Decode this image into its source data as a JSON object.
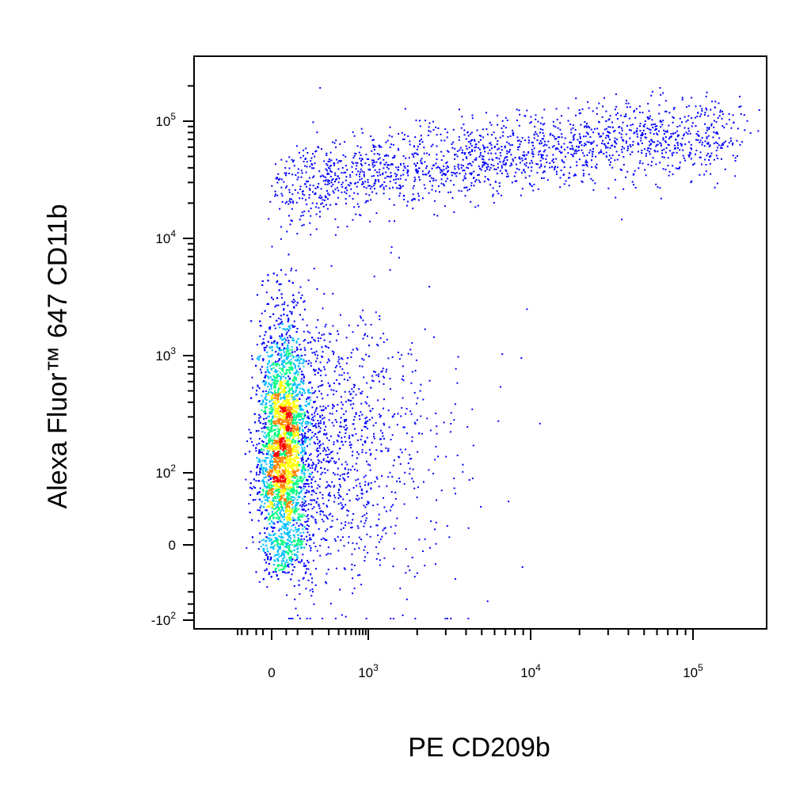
{
  "chart_data": {
    "type": "scatter",
    "style": "flow-cytometry pseudocolor density dot plot",
    "xlabel": "PE CD209b",
    "ylabel": "Alexa Fluor™ 647 CD11b",
    "x_scale": "biexponential",
    "y_scale": "biexponential",
    "xlim": [
      -200,
      150000
    ],
    "ylim": [
      -130,
      200000
    ],
    "x_ticks": [
      {
        "value": 0,
        "base": "0",
        "exp": ""
      },
      {
        "value": 1000,
        "base": "10",
        "exp": "3"
      },
      {
        "value": 10000,
        "base": "10",
        "exp": "4"
      },
      {
        "value": 100000,
        "base": "10",
        "exp": "5"
      }
    ],
    "y_ticks": [
      {
        "value": -100,
        "base": "-10",
        "exp": "2"
      },
      {
        "value": 0,
        "base": "0",
        "exp": ""
      },
      {
        "value": 100,
        "base": "10",
        "exp": "2"
      },
      {
        "value": 1000,
        "base": "10",
        "exp": "3"
      },
      {
        "value": 10000,
        "base": "10",
        "exp": "4"
      },
      {
        "value": 100000,
        "base": "10",
        "exp": "5"
      }
    ],
    "grid": false,
    "legend": "none",
    "density_colors": [
      "#0000ff",
      "#00bfff",
      "#00ff80",
      "#ffff00",
      "#ff8000",
      "#ff0000"
    ],
    "populations": [
      {
        "name": "",
        "x_center": 30,
        "y_center": 150,
        "x_spread": 70,
        "y_spread_log": 0.9,
        "fraction": 0.72
      },
      {
        "name": "",
        "x_center": 4000,
        "y_center": 30000,
        "x_spread_log": 0.7,
        "y_spread_log": 0.25,
        "fraction": 0.16
      },
      {
        "name": "",
        "x_center": 300,
        "y_center": 1500,
        "x_spread_log": 0.5,
        "y_spread_log": 0.4,
        "fraction": 0.12
      }
    ]
  }
}
